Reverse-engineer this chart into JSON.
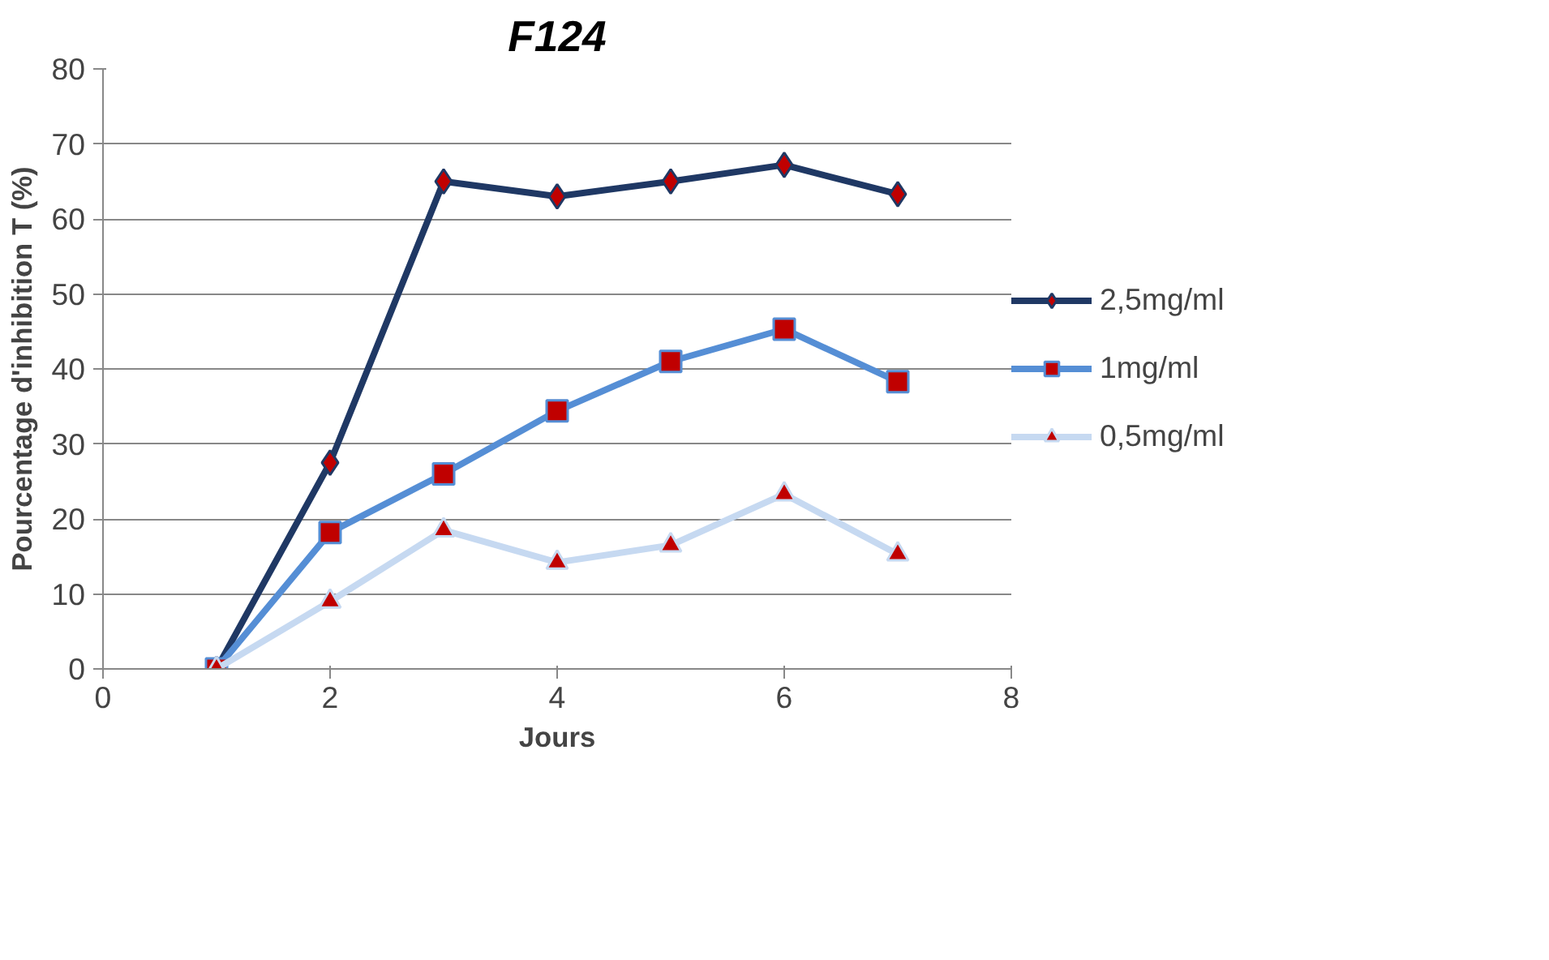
{
  "chart_data": {
    "type": "line",
    "title": "F124",
    "xlabel": "Jours",
    "ylabel": "Pourcentage d'inhibition T (%)",
    "x": [
      1,
      2,
      3,
      4,
      5,
      6,
      7
    ],
    "series": [
      {
        "name": "2,5mg/ml",
        "color": "#1f3864",
        "marker": "diamond",
        "values": [
          0,
          27.5,
          65,
          63,
          65,
          67.2,
          63.3
        ]
      },
      {
        "name": "1mg/ml",
        "color": "#558ed5",
        "marker": "square",
        "values": [
          0,
          18.2,
          26,
          34.4,
          41,
          45.3,
          38.3
        ]
      },
      {
        "name": "0,5mg/ml",
        "color": "#c6d9f1",
        "marker": "triangle",
        "values": [
          0,
          9,
          18.5,
          14.2,
          16.5,
          23.3,
          15.3
        ]
      }
    ],
    "xlim": [
      0,
      8
    ],
    "xticks": [
      0,
      2,
      4,
      6,
      8
    ],
    "ylim": [
      0,
      80
    ],
    "yticks": [
      0,
      10,
      20,
      30,
      40,
      50,
      60,
      70,
      80
    ],
    "grid": "y",
    "legend": "right"
  }
}
